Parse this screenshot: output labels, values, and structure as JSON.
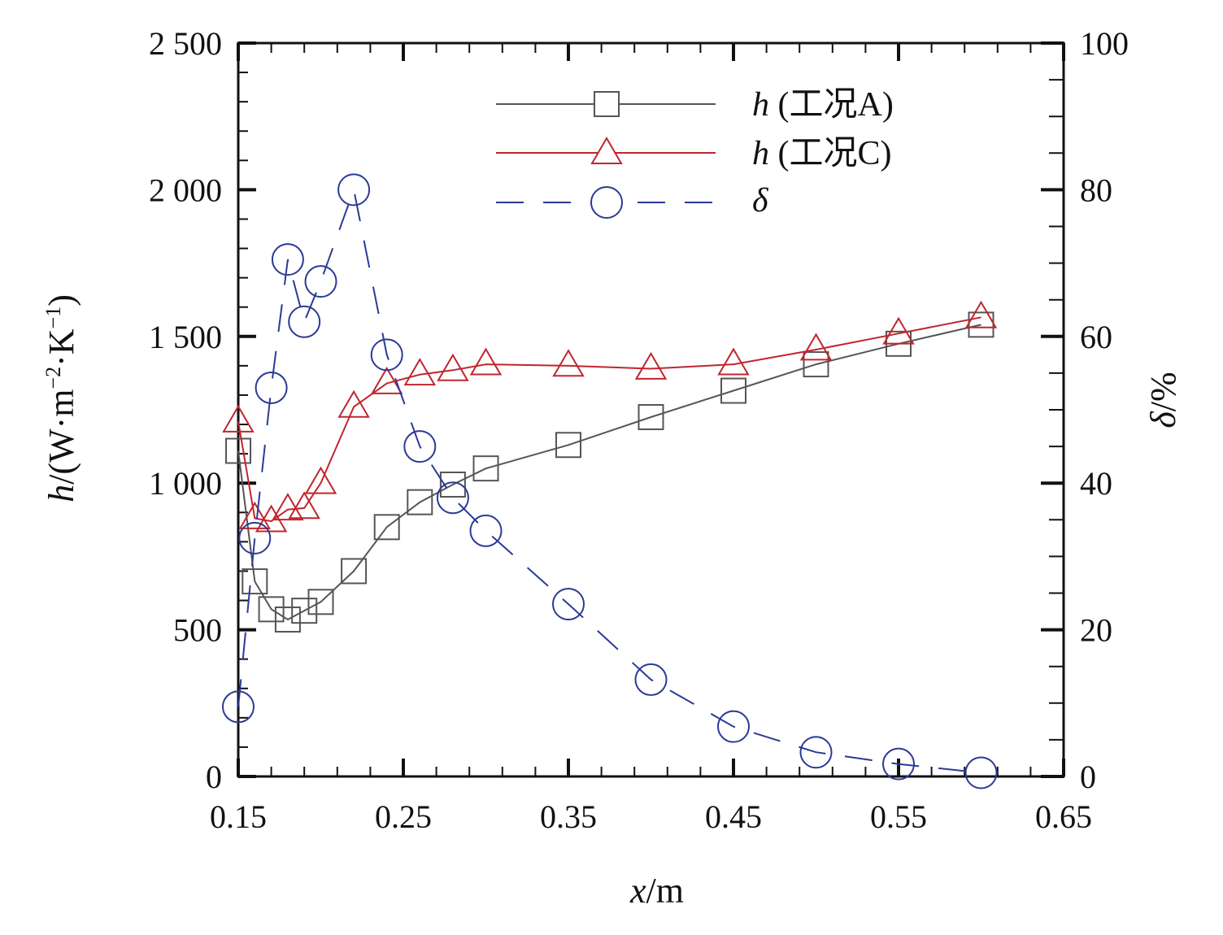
{
  "chart_data": {
    "type": "line",
    "xlabel_var": "x",
    "xlabel_unit": "/m",
    "ylabel_var": "h",
    "ylabel_unit": "/(W·m",
    "ylabel_unit_exp1": "−2",
    "ylabel_unit_mid": "·K",
    "ylabel_unit_exp2": "−1",
    "ylabel_unit_end": ")",
    "y2label_var": "δ",
    "y2label_unit": "/%",
    "xlim": [
      0.15,
      0.65
    ],
    "ylim": [
      0,
      2500
    ],
    "y2lim": [
      0,
      100
    ],
    "x_ticks": [
      "0.15",
      "0.25",
      "0.35",
      "0.45",
      "0.55",
      "0.65"
    ],
    "x_tick_values": [
      0.15,
      0.25,
      0.35,
      0.45,
      0.55,
      0.65
    ],
    "y_ticks": [
      "0",
      "500",
      "1 000",
      "1 500",
      "2 000",
      "2 500"
    ],
    "y_tick_values": [
      0,
      500,
      1000,
      1500,
      2000,
      2500
    ],
    "y2_ticks": [
      "0",
      "20",
      "40",
      "60",
      "80",
      "100"
    ],
    "y2_tick_values": [
      0,
      20,
      40,
      60,
      80,
      100
    ],
    "series": [
      {
        "name": "h (工况A)",
        "legend_var": "h",
        "legend_text": " (工况A)",
        "axis": "left",
        "marker": "square",
        "line_style": "solid",
        "color": "#555555",
        "x": [
          0.15,
          0.16,
          0.17,
          0.18,
          0.19,
          0.2,
          0.22,
          0.24,
          0.26,
          0.28,
          0.3,
          0.35,
          0.4,
          0.45,
          0.5,
          0.55,
          0.6
        ],
        "values": [
          1110,
          665,
          570,
          535,
          565,
          595,
          700,
          850,
          935,
          995,
          1050,
          1130,
          1225,
          1315,
          1405,
          1475,
          1540
        ]
      },
      {
        "name": "h (工况C)",
        "legend_var": "h",
        "legend_text": " (工况C)",
        "axis": "left",
        "marker": "triangle",
        "line_style": "solid",
        "color": "#c0262d",
        "x": [
          0.15,
          0.16,
          0.17,
          0.18,
          0.19,
          0.2,
          0.22,
          0.24,
          0.26,
          0.28,
          0.3,
          0.35,
          0.4,
          0.45,
          0.5,
          0.55,
          0.6
        ],
        "values": [
          1210,
          880,
          870,
          910,
          915,
          1000,
          1260,
          1340,
          1370,
          1385,
          1405,
          1400,
          1390,
          1405,
          1455,
          1510,
          1565
        ]
      },
      {
        "name": "δ",
        "legend_var": "δ",
        "legend_text": "",
        "axis": "right",
        "marker": "circle",
        "line_style": "dashed",
        "color": "#2b3a96",
        "x": [
          0.15,
          0.16,
          0.17,
          0.18,
          0.19,
          0.2,
          0.22,
          0.24,
          0.26,
          0.28,
          0.3,
          0.35,
          0.4,
          0.45,
          0.5,
          0.55,
          0.6
        ],
        "values": [
          9.5,
          32.5,
          53,
          70.5,
          62,
          67.5,
          80,
          57.5,
          45,
          38,
          33.5,
          23.5,
          13.2,
          6.8,
          3.3,
          1.7,
          0.5
        ]
      }
    ]
  }
}
